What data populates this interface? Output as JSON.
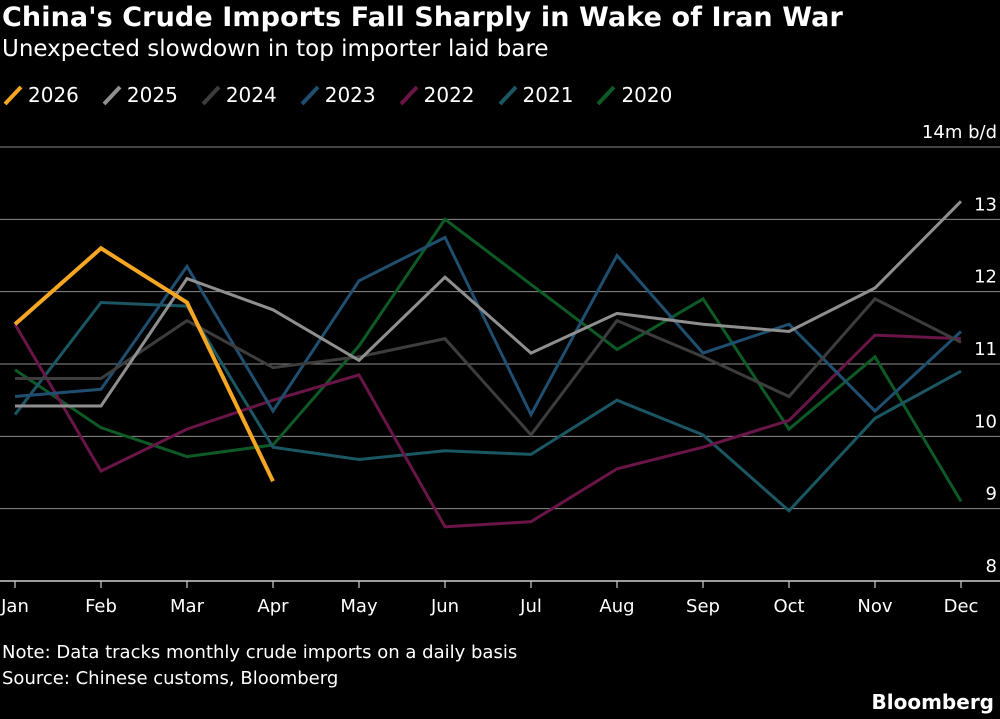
{
  "title": "China's Crude Imports Fall Sharply in Wake of Iran War",
  "subtitle": "Unexpected slowdown in top importer laid bare",
  "note": "Note: Data tracks monthly crude imports on a daily basis",
  "source": "Source: Chinese customs, Bloomberg",
  "brand": "Bloomberg",
  "colors": {
    "background": "#000000",
    "grid": "#8c8c8c",
    "text": "#ffffff"
  },
  "chart_data": {
    "type": "line",
    "title": "China's Crude Imports Fall Sharply in Wake of Iran War",
    "subtitle": "Unexpected slowdown in top importer laid bare",
    "xlabel": "",
    "ylabel": "",
    "unit_label": "14m b/d",
    "categories": [
      "Jan",
      "Feb",
      "Mar",
      "Apr",
      "May",
      "Jun",
      "Jul",
      "Aug",
      "Sep",
      "Oct",
      "Nov",
      "Dec"
    ],
    "ylim": [
      8,
      14
    ],
    "yticks": [
      8,
      9,
      10,
      11,
      12,
      13,
      14
    ],
    "ytick_labels": [
      "8",
      "9",
      "10",
      "11",
      "12",
      "13",
      "14m b/d"
    ],
    "grid": true,
    "legend_position": "top-left",
    "series": [
      {
        "name": "2026",
        "color": "#f5a623",
        "width": 4,
        "values": [
          11.55,
          12.6,
          11.85,
          9.38,
          null,
          null,
          null,
          null,
          null,
          null,
          null,
          null
        ]
      },
      {
        "name": "2025",
        "color": "#8f8f8f",
        "width": 3,
        "values": [
          10.42,
          10.42,
          12.18,
          11.75,
          11.05,
          12.2,
          11.15,
          11.7,
          11.55,
          11.45,
          12.05,
          13.25
        ]
      },
      {
        "name": "2024",
        "color": "#3d3d3d",
        "width": 3,
        "values": [
          10.8,
          10.8,
          11.6,
          10.95,
          11.1,
          11.35,
          10.02,
          11.6,
          11.1,
          10.55,
          11.9,
          11.3
        ]
      },
      {
        "name": "2023",
        "color": "#1f4e6f",
        "width": 3,
        "values": [
          10.55,
          10.65,
          12.35,
          10.35,
          12.15,
          12.75,
          10.3,
          12.5,
          11.15,
          11.55,
          10.35,
          11.45
        ]
      },
      {
        "name": "2022",
        "color": "#6a1548",
        "width": 3,
        "values": [
          11.55,
          9.52,
          10.1,
          10.5,
          10.85,
          8.75,
          8.82,
          9.55,
          9.85,
          10.22,
          11.4,
          11.35
        ]
      },
      {
        "name": "2021",
        "color": "#1b5663",
        "width": 3,
        "values": [
          10.3,
          11.85,
          11.8,
          9.85,
          9.68,
          9.8,
          9.75,
          10.5,
          10.02,
          8.97,
          10.25,
          10.9
        ]
      },
      {
        "name": "2020",
        "color": "#0e5a26",
        "width": 3,
        "values": [
          10.92,
          10.12,
          9.72,
          9.88,
          11.25,
          13.0,
          12.1,
          11.2,
          11.9,
          10.1,
          11.1,
          9.1
        ]
      }
    ]
  }
}
